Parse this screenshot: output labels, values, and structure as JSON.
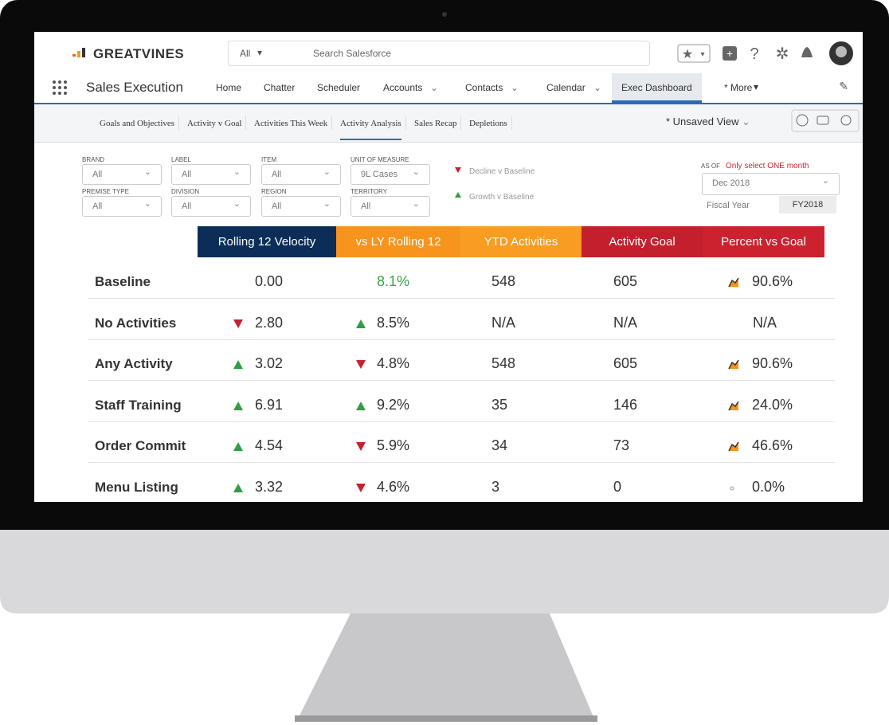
{
  "header": {
    "logo": "GREATVINES",
    "search_scope": "All",
    "search_placeholder": "Search Salesforce"
  },
  "nav": {
    "app_name": "Sales Execution",
    "items": [
      "Home",
      "Chatter",
      "Scheduler",
      "Accounts",
      "Contacts",
      "Calendar",
      "Exec Dashboard",
      "* More"
    ]
  },
  "tabs": {
    "items": [
      "Goals and Objectives",
      "Activity v Goal",
      "Activities This Week",
      "Activity Analysis",
      "Sales Recap",
      "Depletions"
    ],
    "view": "* Unsaved View"
  },
  "filters": [
    {
      "label": "BRAND",
      "value": "All"
    },
    {
      "label": "LABEL",
      "value": "All"
    },
    {
      "label": "ITEM",
      "value": "All"
    },
    {
      "label": "UNIT OF MEASURE",
      "value": "9L Cases"
    },
    {
      "label": "PREMISE TYPE",
      "value": "All"
    },
    {
      "label": "DIVISION",
      "value": "All"
    },
    {
      "label": "REGION",
      "value": "All"
    },
    {
      "label": "TERRITORY",
      "value": "All"
    }
  ],
  "legend": {
    "decline": "Decline v Baseline",
    "growth": "Growth v Baseline"
  },
  "as_of": {
    "label": "AS OF",
    "note": "Only select ONE month",
    "value": "Dec 2018",
    "fiscal_label": "Fiscal Year",
    "fiscal_value": "FY2018"
  },
  "table": {
    "columns": [
      {
        "text": "Rolling 12 Velocity",
        "color": "#0c2d57"
      },
      {
        "text": "vs LY Rolling 12",
        "color": "#f7941d"
      },
      {
        "text": "YTD Activities",
        "color": "#f89c22"
      },
      {
        "text": "Activity Goal",
        "color": "#c41f2d"
      },
      {
        "text": "Percent vs Goal",
        "color": "#cc2230"
      }
    ],
    "rows": [
      {
        "label": "Baseline",
        "cells": [
          {
            "text": "0.00"
          },
          {
            "text": "8.1%",
            "color": "#3aa543"
          },
          {
            "text": "548"
          },
          {
            "text": "605"
          },
          {
            "text": "90.6%",
            "icon": "chart"
          }
        ]
      },
      {
        "label": "No Activities",
        "cells": [
          {
            "text": "2.80",
            "trend": "down"
          },
          {
            "text": "8.5%",
            "trend": "up"
          },
          {
            "text": "N/A"
          },
          {
            "text": "N/A"
          },
          {
            "text": "N/A"
          }
        ]
      },
      {
        "label": "Any Activity",
        "cells": [
          {
            "text": "3.02",
            "trend": "up"
          },
          {
            "text": "4.8%",
            "trend": "down"
          },
          {
            "text": "548"
          },
          {
            "text": "605"
          },
          {
            "text": "90.6%",
            "icon": "chart"
          }
        ]
      },
      {
        "label": "Staff Training",
        "cells": [
          {
            "text": "6.91",
            "trend": "up"
          },
          {
            "text": "9.2%",
            "trend": "up"
          },
          {
            "text": "35"
          },
          {
            "text": "146"
          },
          {
            "text": "24.0%",
            "icon": "chart"
          }
        ]
      },
      {
        "label": "Order Commit",
        "cells": [
          {
            "text": "4.54",
            "trend": "up"
          },
          {
            "text": "5.9%",
            "trend": "down"
          },
          {
            "text": "34"
          },
          {
            "text": "73"
          },
          {
            "text": "46.6%",
            "icon": "chart"
          }
        ]
      },
      {
        "label": "Menu Listing",
        "cells": [
          {
            "text": "3.32",
            "trend": "up"
          },
          {
            "text": "4.6%",
            "trend": "down"
          },
          {
            "text": "3"
          },
          {
            "text": "0"
          },
          {
            "text": "0.0%",
            "icon": "dot"
          }
        ]
      }
    ]
  }
}
